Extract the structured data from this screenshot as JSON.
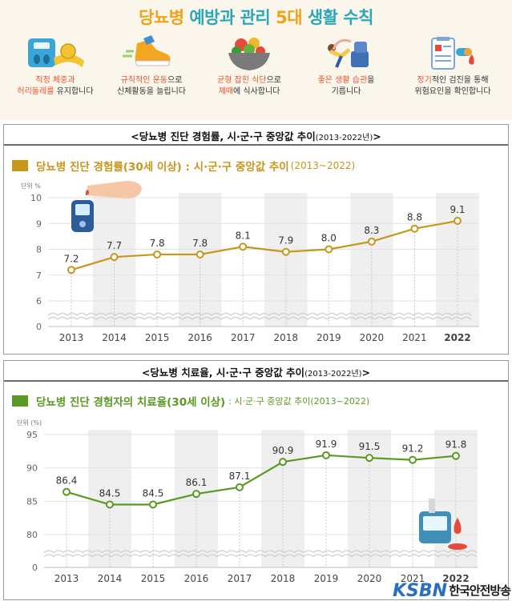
{
  "banner": {
    "title_part1": "당뇨병",
    "title_part2": " 예방과 관리 ",
    "title_part3": "5대",
    "title_part4": " 생활 수칙",
    "tips": [
      {
        "icon": "scale-measure-icon",
        "hl1": "적정 체중과",
        "line2_hl": "허리둘레를",
        "line2_rest": " 유지합니다"
      },
      {
        "icon": "running-shoe-icon",
        "hl1": "규칙적인 운동",
        "hl1_rest": "으로",
        "line2_hl": "",
        "line2_rest": "신체활동을 늘립니다"
      },
      {
        "icon": "salad-bowl-icon",
        "hl1": "균형 잡힌 식단",
        "hl1_rest": "으로",
        "line2_hl": "제때",
        "line2_rest": "에 식사합니다"
      },
      {
        "icon": "stretching-woman-icon",
        "hl1": "좋은 생활 습관",
        "hl1_rest": "을",
        "line2_hl": "",
        "line2_rest": "기릅니다"
      },
      {
        "icon": "medical-checkup-icon",
        "hl1": "정기",
        "hl1_rest": "적인 검진을 통해",
        "line2_hl": "",
        "line2_rest": "위험요인을 확인합니다"
      }
    ]
  },
  "panel1": {
    "heading": "<당뇨병 진단 경험률, 시·군·구 중앙값 추이",
    "heading_years": "(2013-2022년)",
    "heading_close": ">",
    "chart_title": "당뇨병 진단 경험률(30세 이상) : 시·군·구 중앙값 추이",
    "chart_title_years": "(2013~2022)",
    "unit": "단위 %",
    "color": "#c9961c"
  },
  "panel2": {
    "heading": "<당뇨병 치료율, 시·군·구 중앙값 추이",
    "heading_years": "(2013-2022년)",
    "heading_close": ">",
    "chart_title": "당뇨병 진단 경험자의 치료율(30세 이상)",
    "chart_title_sub": ": 시·군·구 중앙값 추이(2013~2022)",
    "unit": "단위 (%)",
    "color": "#5a9a22"
  },
  "chart_data": [
    {
      "type": "line",
      "title": "당뇨병 진단 경험률(30세 이상) : 시·군·구 중앙값 추이(2013~2022)",
      "ylabel": "단위 %",
      "categories": [
        "2013",
        "2014",
        "2015",
        "2016",
        "2017",
        "2018",
        "2019",
        "2020",
        "2021",
        "2022"
      ],
      "values": [
        7.2,
        7.7,
        7.8,
        7.8,
        8.1,
        7.9,
        8.0,
        8.3,
        8.8,
        9.1
      ],
      "value_labels": [
        "7.2",
        "7.7",
        "7.8",
        "7.8",
        "8.1",
        "7.9",
        "8.0",
        "8.3",
        "8.8",
        "9.1"
      ],
      "yticks": [
        "0",
        "6",
        "7",
        "8",
        "9",
        "10"
      ],
      "ylim": [
        6,
        10
      ],
      "axis_break": true,
      "color": "#c9961c"
    },
    {
      "type": "line",
      "title": "당뇨병 진단 경험자의 치료율(30세 이상) : 시·군·구 중앙값 추이(2013~2022)",
      "ylabel": "단위 (%)",
      "categories": [
        "2013",
        "2014",
        "2015",
        "2016",
        "2017",
        "2018",
        "2019",
        "2020",
        "2021",
        "2022"
      ],
      "values": [
        86.4,
        84.5,
        84.5,
        86.1,
        87.1,
        90.9,
        91.9,
        91.5,
        91.2,
        91.8
      ],
      "value_labels": [
        "86.4",
        "84.5",
        "84.5",
        "86.1",
        "87.1",
        "90.9",
        "91.9",
        "91.5",
        "91.2",
        "91.8"
      ],
      "yticks": [
        "0",
        "80",
        "85",
        "90",
        "95"
      ],
      "ylim": [
        80,
        95
      ],
      "axis_break": true,
      "color": "#5a9a22"
    }
  ],
  "logo": {
    "text": "한국안전방송",
    "icon": "ksbn-logo-icon"
  }
}
